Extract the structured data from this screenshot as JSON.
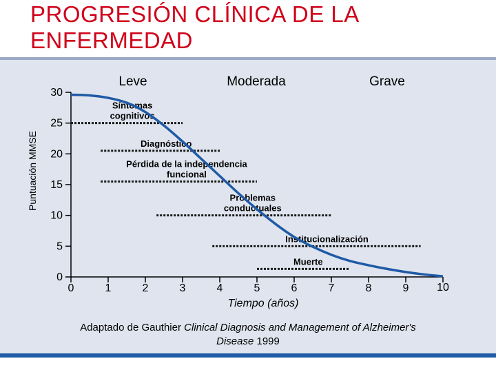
{
  "slide": {
    "title_line1": "PROGRESIÓN CLÍNICA DE LA",
    "title_line2": "ENFERMEDAD",
    "caption_prefix": "Adaptado de Gauthier ",
    "caption_italic": "Clinical Diagnosis and Management of Alzheimer's Disease",
    "caption_suffix": " 1999",
    "colors": {
      "title": "#d0021b",
      "curve": "#1f5aa6",
      "panel": "#dfe4ee"
    }
  },
  "chart_data": {
    "type": "line",
    "xlabel": "Tiempo (años)",
    "ylabel": "Puntuación MMSE",
    "xlim": [
      0,
      10
    ],
    "ylim": [
      0,
      30
    ],
    "x_ticks": [
      "0",
      "1",
      "2",
      "3",
      "4",
      "5",
      "6",
      "7",
      "8",
      "9",
      "10"
    ],
    "y_ticks": [
      "30",
      "25",
      "20",
      "15",
      "10",
      "5",
      "0"
    ],
    "phases": [
      "Leve",
      "Moderada",
      "Grave"
    ],
    "series": [
      {
        "x": [
          0,
          0.5,
          1,
          1.5,
          2,
          2.5,
          3,
          3.5,
          4,
          4.5,
          5,
          5.5,
          6,
          6.5,
          7,
          7.5,
          8,
          8.5,
          9,
          9.5,
          10
        ],
        "y": [
          29.6,
          29.5,
          29.1,
          28.3,
          26.8,
          24.6,
          22.0,
          19.2,
          16.4,
          13.6,
          11.0,
          8.6,
          6.5,
          4.9,
          3.6,
          2.6,
          1.9,
          1.3,
          0.8,
          0.4,
          0.1
        ]
      }
    ],
    "annotations": [
      {
        "label": "Síntomas cognitivos",
        "x_start": 0,
        "x_end": 3,
        "y": 25
      },
      {
        "label": "Diagnóstico",
        "x_start": 0.8,
        "x_end": 4,
        "y": 20.5
      },
      {
        "label": "Pérdida de la independencia funcional",
        "x_start": 0.8,
        "x_end": 5,
        "y": 15.5
      },
      {
        "label": "Problemas conductuales",
        "x_start": 2.3,
        "x_end": 7,
        "y": 10
      },
      {
        "label": "Institucionalización",
        "x_start": 3.8,
        "x_end": 9.4,
        "y": 5
      },
      {
        "label": "Muerte",
        "x_start": 5,
        "x_end": 7.5,
        "y": 1.3
      }
    ]
  }
}
